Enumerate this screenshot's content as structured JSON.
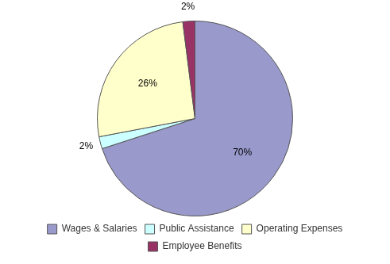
{
  "chart_data": {
    "type": "pie",
    "categories": [
      "Wages & Salaries",
      "Public Assistance",
      "Operating Expenses",
      "Employee Benefits"
    ],
    "values": [
      70,
      2,
      26,
      2
    ],
    "value_labels": [
      "70%",
      "2%",
      "26%",
      "2%"
    ],
    "colors": [
      "#9999CC",
      "#CCFFFF",
      "#FFFFCC",
      "#993366"
    ],
    "data_labels": true,
    "legend": "bottom"
  }
}
